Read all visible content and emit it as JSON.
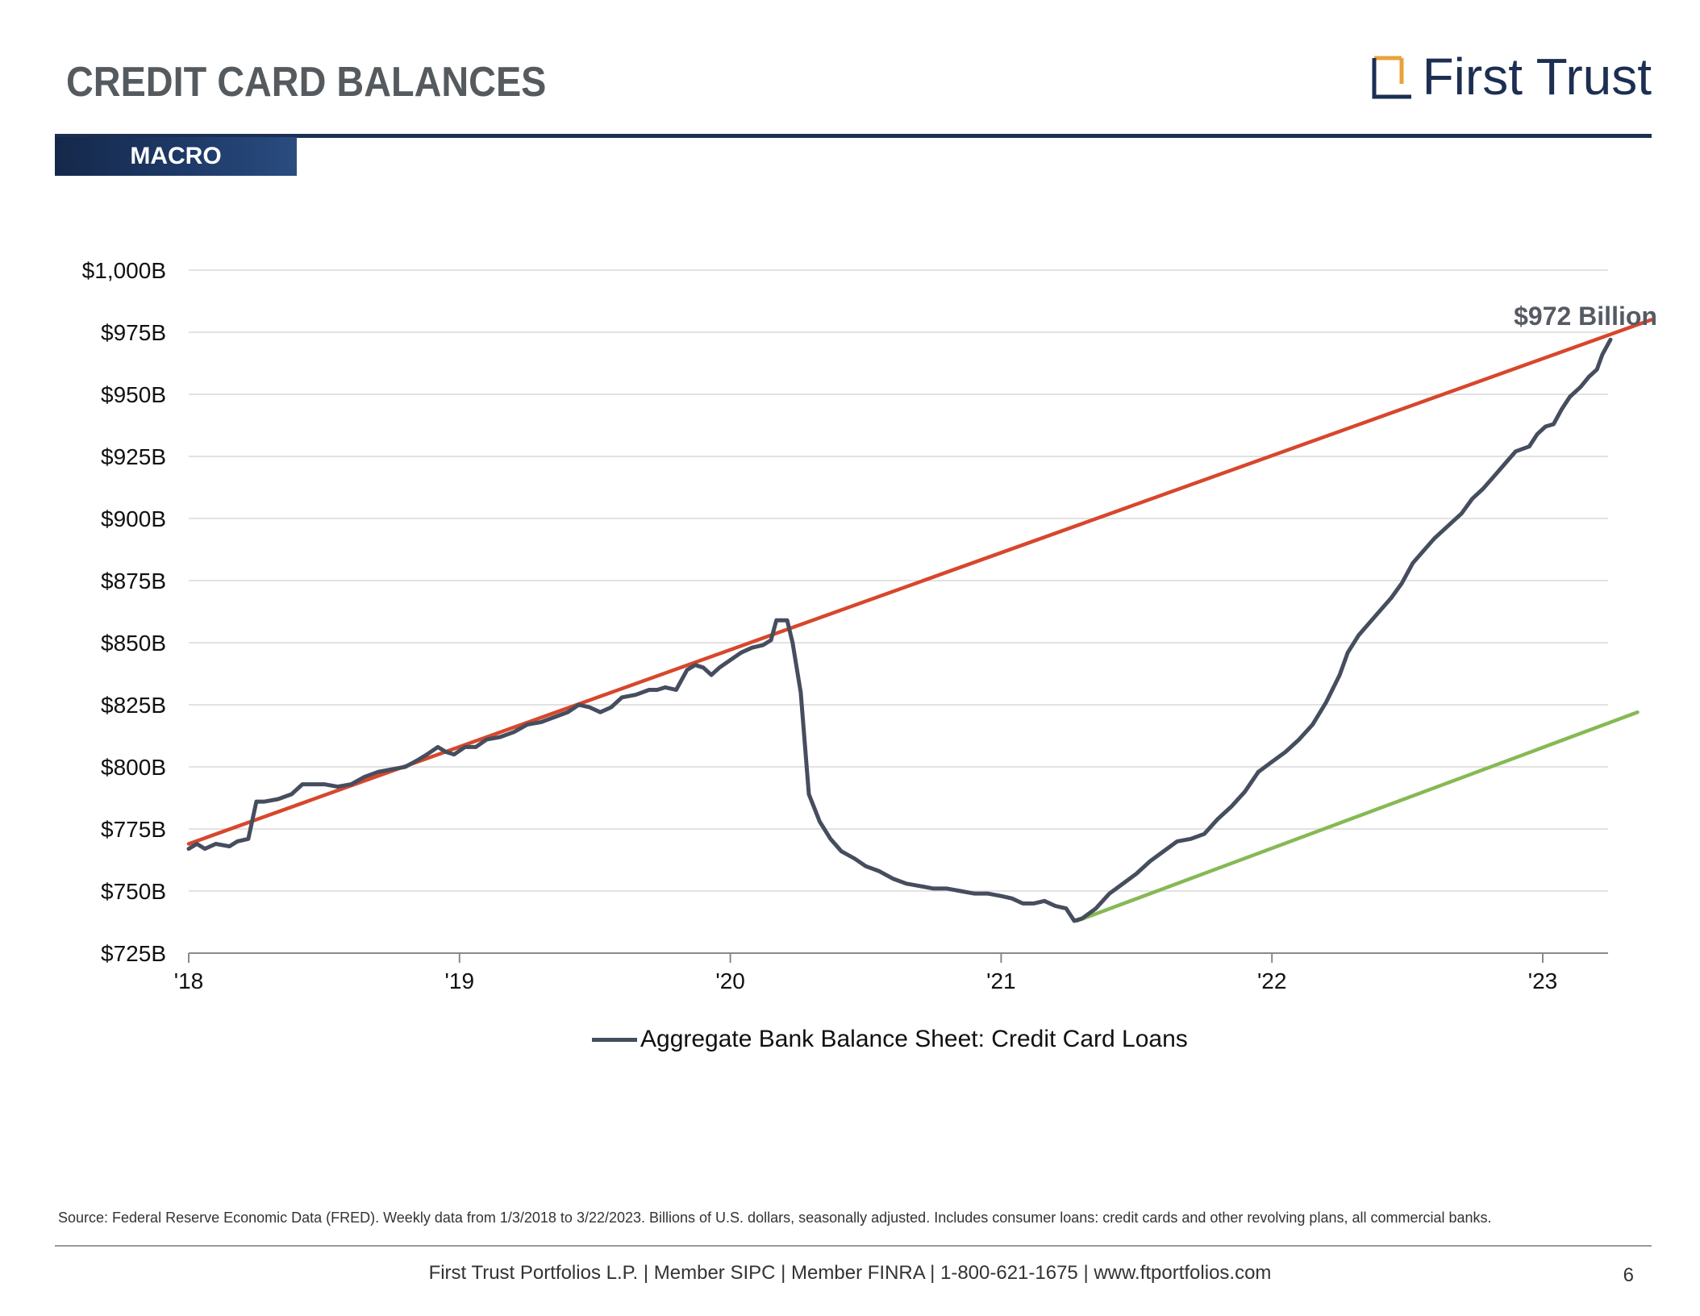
{
  "header": {
    "title": "CREDIT CARD BALANCES",
    "section_tab": "MACRO",
    "logo_text": "First Trust",
    "logo_icon": "bracket-square-icon"
  },
  "colors": {
    "navy": "#1c2f52",
    "series": "#454d5e",
    "trend_red": "#d7472c",
    "trend_green": "#86b955",
    "logo_accent": "#e9a23b"
  },
  "chart_data": {
    "type": "line",
    "xlim": [
      2018.0,
      2023.35
    ],
    "ylim": [
      725,
      1000
    ],
    "x_ticks": [
      {
        "x": 2018,
        "label": "'18"
      },
      {
        "x": 2019,
        "label": "'19"
      },
      {
        "x": 2020,
        "label": "'20"
      },
      {
        "x": 2021,
        "label": "'21"
      },
      {
        "x": 2022,
        "label": "'22"
      },
      {
        "x": 2023,
        "label": "'23"
      }
    ],
    "y_ticks": [
      {
        "y": 725,
        "label": "$725B"
      },
      {
        "y": 750,
        "label": "$750B"
      },
      {
        "y": 775,
        "label": "$775B"
      },
      {
        "y": 800,
        "label": "$800B"
      },
      {
        "y": 825,
        "label": "$825B"
      },
      {
        "y": 850,
        "label": "$850B"
      },
      {
        "y": 875,
        "label": "$875B"
      },
      {
        "y": 900,
        "label": "$900B"
      },
      {
        "y": 925,
        "label": "$925B"
      },
      {
        "y": 950,
        "label": "$950B"
      },
      {
        "y": 975,
        "label": "$975B"
      },
      {
        "y": 1000,
        "label": "$1,000B"
      }
    ],
    "grid": true,
    "legend_position": "bottom-center",
    "series": [
      {
        "name": "Aggregate Bank Balance Sheet: Credit Card Loans",
        "color": "#454d5e",
        "points": [
          [
            2018.0,
            767
          ],
          [
            2018.03,
            769
          ],
          [
            2018.06,
            767
          ],
          [
            2018.1,
            769
          ],
          [
            2018.15,
            768
          ],
          [
            2018.18,
            770
          ],
          [
            2018.22,
            771
          ],
          [
            2018.25,
            786
          ],
          [
            2018.28,
            786
          ],
          [
            2018.33,
            787
          ],
          [
            2018.38,
            789
          ],
          [
            2018.42,
            793
          ],
          [
            2018.46,
            793
          ],
          [
            2018.5,
            793
          ],
          [
            2018.55,
            792
          ],
          [
            2018.6,
            793
          ],
          [
            2018.65,
            796
          ],
          [
            2018.7,
            798
          ],
          [
            2018.75,
            799
          ],
          [
            2018.8,
            800
          ],
          [
            2018.85,
            803
          ],
          [
            2018.88,
            805
          ],
          [
            2018.92,
            808
          ],
          [
            2018.95,
            806
          ],
          [
            2018.98,
            805
          ],
          [
            2019.02,
            808
          ],
          [
            2019.06,
            808
          ],
          [
            2019.1,
            811
          ],
          [
            2019.15,
            812
          ],
          [
            2019.2,
            814
          ],
          [
            2019.25,
            817
          ],
          [
            2019.3,
            818
          ],
          [
            2019.35,
            820
          ],
          [
            2019.4,
            822
          ],
          [
            2019.44,
            825
          ],
          [
            2019.48,
            824
          ],
          [
            2019.52,
            822
          ],
          [
            2019.56,
            824
          ],
          [
            2019.6,
            828
          ],
          [
            2019.65,
            829
          ],
          [
            2019.7,
            831
          ],
          [
            2019.73,
            831
          ],
          [
            2019.76,
            832
          ],
          [
            2019.8,
            831
          ],
          [
            2019.84,
            839
          ],
          [
            2019.87,
            841
          ],
          [
            2019.9,
            840
          ],
          [
            2019.93,
            837
          ],
          [
            2019.96,
            840
          ],
          [
            2020.0,
            843
          ],
          [
            2020.04,
            846
          ],
          [
            2020.08,
            848
          ],
          [
            2020.12,
            849
          ],
          [
            2020.15,
            851
          ],
          [
            2020.17,
            859
          ],
          [
            2020.21,
            859
          ],
          [
            2020.23,
            850
          ],
          [
            2020.26,
            830
          ],
          [
            2020.29,
            789
          ],
          [
            2020.33,
            778
          ],
          [
            2020.37,
            771
          ],
          [
            2020.41,
            766
          ],
          [
            2020.46,
            763
          ],
          [
            2020.5,
            760
          ],
          [
            2020.55,
            758
          ],
          [
            2020.6,
            755
          ],
          [
            2020.65,
            753
          ],
          [
            2020.7,
            752
          ],
          [
            2020.75,
            751
          ],
          [
            2020.8,
            751
          ],
          [
            2020.85,
            750
          ],
          [
            2020.9,
            749
          ],
          [
            2020.95,
            749
          ],
          [
            2021.0,
            748
          ],
          [
            2021.04,
            747
          ],
          [
            2021.08,
            745
          ],
          [
            2021.12,
            745
          ],
          [
            2021.16,
            746
          ],
          [
            2021.2,
            744
          ],
          [
            2021.24,
            743
          ],
          [
            2021.27,
            738
          ],
          [
            2021.3,
            739
          ],
          [
            2021.35,
            743
          ],
          [
            2021.4,
            749
          ],
          [
            2021.45,
            753
          ],
          [
            2021.5,
            757
          ],
          [
            2021.55,
            762
          ],
          [
            2021.6,
            766
          ],
          [
            2021.65,
            770
          ],
          [
            2021.7,
            771
          ],
          [
            2021.75,
            773
          ],
          [
            2021.8,
            779
          ],
          [
            2021.85,
            784
          ],
          [
            2021.9,
            790
          ],
          [
            2021.95,
            798
          ],
          [
            2022.0,
            802
          ],
          [
            2022.05,
            806
          ],
          [
            2022.1,
            811
          ],
          [
            2022.15,
            817
          ],
          [
            2022.2,
            826
          ],
          [
            2022.25,
            837
          ],
          [
            2022.28,
            846
          ],
          [
            2022.32,
            853
          ],
          [
            2022.36,
            858
          ],
          [
            2022.4,
            863
          ],
          [
            2022.44,
            868
          ],
          [
            2022.48,
            874
          ],
          [
            2022.52,
            882
          ],
          [
            2022.56,
            887
          ],
          [
            2022.6,
            892
          ],
          [
            2022.65,
            897
          ],
          [
            2022.7,
            902
          ],
          [
            2022.74,
            908
          ],
          [
            2022.78,
            912
          ],
          [
            2022.82,
            917
          ],
          [
            2022.86,
            922
          ],
          [
            2022.9,
            927
          ],
          [
            2022.95,
            929
          ],
          [
            2022.98,
            934
          ],
          [
            2023.01,
            937
          ],
          [
            2023.04,
            938
          ],
          [
            2023.07,
            944
          ],
          [
            2023.1,
            949
          ],
          [
            2023.14,
            953
          ],
          [
            2023.17,
            957
          ],
          [
            2023.2,
            960
          ],
          [
            2023.22,
            966
          ],
          [
            2023.25,
            972
          ]
        ]
      }
    ],
    "trend_lines": [
      {
        "color": "#d7472c",
        "from": [
          2018.0,
          769
        ],
        "to": [
          2023.4,
          980
        ]
      },
      {
        "color": "#86b955",
        "from": [
          2021.28,
          738
        ],
        "to": [
          2023.35,
          822
        ]
      }
    ],
    "annotation": {
      "text": "$972 Billion",
      "x": 2023.25,
      "y": 972
    }
  },
  "legend_label": "Aggregate Bank Balance Sheet: Credit Card Loans",
  "footer": {
    "source": "Source: Federal Reserve Economic Data (FRED). Weekly data from 1/3/2018 to 3/22/2023. Billions of U.S. dollars, seasonally adjusted. Includes consumer loans: credit cards and other revolving plans, all commercial banks.",
    "company_line": "First Trust Portfolios L.P. | Member SIPC | Member FINRA | 1-800-621-1675 | www.ftportfolios.com",
    "page_number": "6"
  }
}
